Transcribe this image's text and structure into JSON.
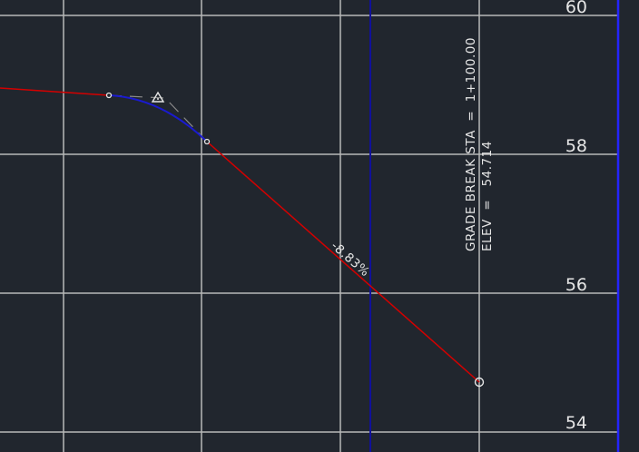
{
  "profile": {
    "elevation_labels": [
      "60",
      "58",
      "56",
      "54"
    ],
    "grade_label": "-8.83%",
    "grade_break": {
      "station_label": "GRADE BREAK STA  =  1+100.00",
      "elev_label": "ELEV  =   54.714"
    },
    "colors": {
      "background": "#21262e",
      "grid": "#b8b8b8",
      "tangent": "#d40000",
      "vertical_curve": "#1a1ad0",
      "station_line": "#10109a",
      "border": "#2424ff"
    },
    "icons": [
      "pvi-triangle-icon",
      "grade-break-circle-icon"
    ]
  }
}
